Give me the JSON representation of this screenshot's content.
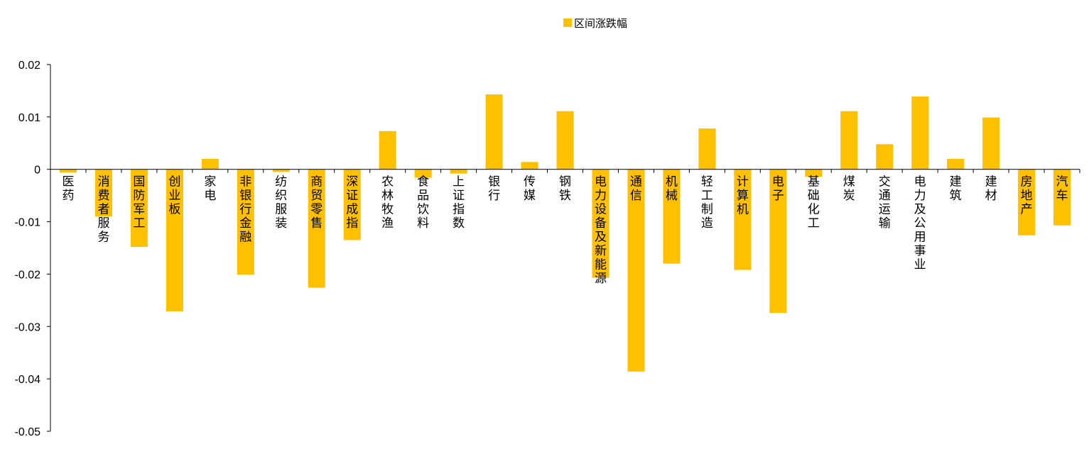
{
  "chart_data": {
    "type": "bar",
    "legend": {
      "entries": [
        "区间涨跌幅"
      ],
      "position": "top"
    },
    "series": [
      {
        "name": "区间涨跌幅",
        "color": "#FFC000",
        "values": [
          -0.0006,
          -0.009,
          -0.0148,
          -0.0271,
          0.002,
          -0.0201,
          -0.0005,
          -0.0226,
          -0.0135,
          0.0073,
          -0.0016,
          -0.0008,
          0.0143,
          0.0014,
          0.0111,
          -0.0207,
          -0.0386,
          -0.018,
          0.0078,
          -0.0192,
          -0.0274,
          -0.0014,
          0.0111,
          0.0048,
          0.0139,
          0.002,
          0.0099,
          -0.0126,
          -0.0107
        ]
      }
    ],
    "categories": [
      "医药",
      "消费者服务",
      "国防军工",
      "创业板",
      "家电",
      "非银行金融",
      "纺织服装",
      "商贸零售",
      "深证成指",
      "农林牧渔",
      "食品饮料",
      "上证指数",
      "银行",
      "传媒",
      "钢铁",
      "电力设备及新能源",
      "通信",
      "机械",
      "轻工制造",
      "计算机",
      "电子",
      "基础化工",
      "煤炭",
      "交通运输",
      "电力及公用事业",
      "建筑",
      "建材",
      "房地产",
      "汽车"
    ],
    "y_ticks": [
      "0.02",
      "0.01",
      "0",
      "-0.01",
      "-0.02",
      "-0.03",
      "-0.04",
      "-0.05"
    ],
    "ylim": [
      -0.05,
      0.02
    ],
    "grid": false
  }
}
